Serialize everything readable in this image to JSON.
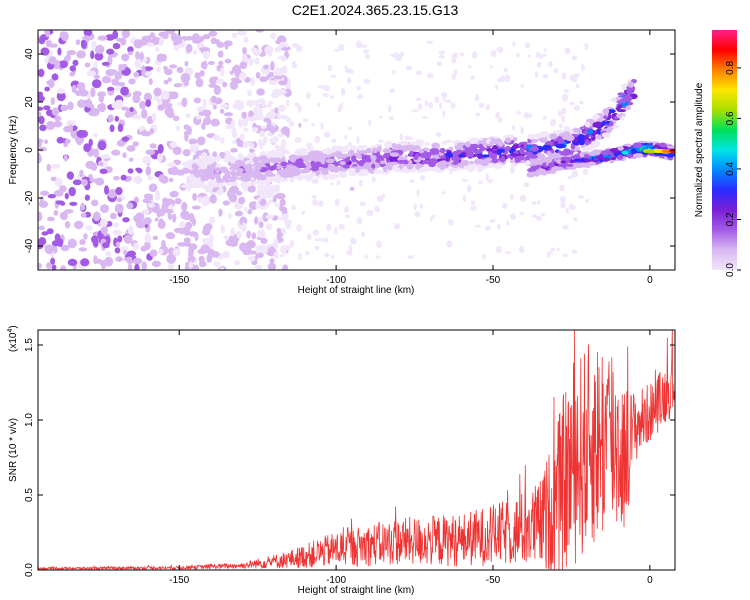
{
  "page": {
    "title": "C2E1.2024.365.23.15.G13"
  },
  "colors": {
    "snr_line": "#ee3333",
    "frame": "#000000",
    "colormap": [
      "#f2e6fb",
      "#d9b8f2",
      "#a35be6",
      "#7a1fd6",
      "#2b2bff",
      "#0088ff",
      "#00e5e5",
      "#00e05a",
      "#a8e000",
      "#ffe600",
      "#ff8000",
      "#ff0000",
      "#ff1f8a"
    ]
  },
  "chart_data": [
    {
      "type": "heatmap",
      "title": "",
      "xlabel": "Height of straight line (km)",
      "ylabel": "Frequency (Hz)",
      "xlim": [
        -195,
        8
      ],
      "ylim": [
        -50,
        50
      ],
      "x_ticks": [
        -150,
        -100,
        -50,
        0
      ],
      "x_tick_labels": [
        "-150",
        "-100",
        "-50",
        "0"
      ],
      "y_ticks": [
        -40,
        -20,
        0,
        20,
        40
      ],
      "y_tick_labels": [
        "-40",
        "-20",
        "0",
        "20",
        "40"
      ],
      "colorbar": {
        "label": "Normalized spectral amplitude",
        "range": [
          0,
          0.95
        ],
        "ticks": [
          0.0,
          0.2,
          0.4,
          0.6,
          0.8
        ],
        "tick_labels": [
          "0.0",
          "0.2",
          "0.4",
          "0.6",
          "0.8"
        ]
      },
      "features": {
        "noise_region_x": [
          -195,
          -125
        ],
        "main_branch": [
          [
            -145,
            -10
          ],
          [
            -120,
            -7
          ],
          [
            -100,
            -5
          ],
          [
            -80,
            -3
          ],
          [
            -60,
            -2
          ],
          [
            -40,
            0
          ],
          [
            -25,
            2
          ],
          [
            -15,
            10
          ],
          [
            -5,
            25
          ]
        ],
        "direct_branch": [
          [
            -38,
            -8
          ],
          [
            -25,
            -5
          ],
          [
            -15,
            -3
          ],
          [
            -5,
            0
          ],
          [
            0,
            0.5
          ],
          [
            7,
            -1
          ]
        ],
        "peak_amplitude": 0.95,
        "peak_x": 7,
        "peak_y": -1
      }
    },
    {
      "type": "line",
      "title": "",
      "xlabel": "Height of straight line (km)",
      "ylabel": "SNR (10 * v/v)",
      "y_scale_label": "(x10",
      "y_scale_exponent": "4",
      "xlim": [
        -195,
        8
      ],
      "ylim": [
        0,
        1.6
      ],
      "x_ticks": [
        -150,
        -100,
        -50,
        0
      ],
      "x_tick_labels": [
        "-150",
        "-100",
        "-50",
        "0"
      ],
      "y_ticks": [
        0.0,
        0.5,
        1.0,
        1.5
      ],
      "y_tick_labels": [
        "0.0",
        "0.5",
        "1.0",
        "1.5"
      ],
      "envelope": {
        "x": [
          -195,
          -150,
          -130,
          -115,
          -100,
          -80,
          -60,
          -45,
          -35,
          -30,
          -25,
          -18,
          -12,
          -8,
          -5,
          0,
          8
        ],
        "mean": [
          0.01,
          0.015,
          0.03,
          0.07,
          0.14,
          0.19,
          0.2,
          0.25,
          0.3,
          0.45,
          0.7,
          0.85,
          0.9,
          0.75,
          0.95,
          1.05,
          1.25
        ],
        "spread": [
          0.008,
          0.01,
          0.02,
          0.06,
          0.12,
          0.16,
          0.18,
          0.22,
          0.3,
          0.5,
          0.7,
          0.7,
          0.7,
          0.5,
          0.25,
          0.2,
          0.2
        ]
      }
    }
  ]
}
